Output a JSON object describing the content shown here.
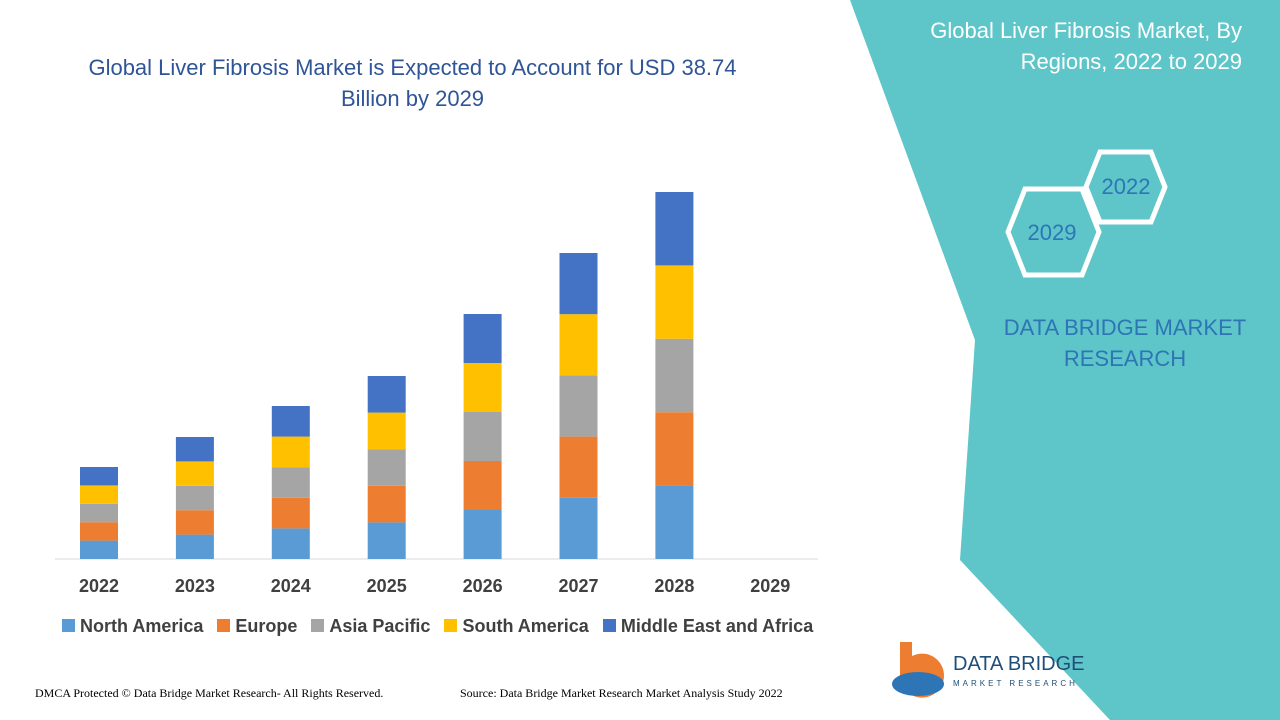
{
  "chart_data": {
    "type": "stacked-bar",
    "title": "Global Liver Fibrosis Market is Expected to Account for USD 38.74 Billion by 2029",
    "categories": [
      "2022",
      "2023",
      "2024",
      "2025",
      "2026",
      "2027",
      "2028",
      "2029"
    ],
    "series": [
      {
        "name": "North America",
        "color": "#5b9bd5",
        "values": [
          1.84,
          2.44,
          3.06,
          3.66,
          4.9,
          6.12,
          7.34,
          null
        ]
      },
      {
        "name": "Europe",
        "color": "#ed7d31",
        "values": [
          1.84,
          2.44,
          3.06,
          3.66,
          4.9,
          6.12,
          7.34,
          null
        ]
      },
      {
        "name": "Asia Pacific",
        "color": "#a5a5a5",
        "values": [
          1.84,
          2.44,
          3.06,
          3.66,
          4.9,
          6.12,
          7.34,
          null
        ]
      },
      {
        "name": "South America",
        "color": "#ffc000",
        "values": [
          1.84,
          2.44,
          3.06,
          3.66,
          4.9,
          6.12,
          7.34,
          null
        ]
      },
      {
        "name": "Middle East and Africa",
        "color": "#4472c4",
        "values": [
          1.84,
          2.44,
          3.06,
          3.66,
          4.9,
          6.12,
          7.34,
          null
        ]
      }
    ],
    "legend": "bottom"
  },
  "header": {
    "title": "Global Liver Fibrosis Market, By Regions, 2022 to 2029"
  },
  "badges": {
    "start": "2022",
    "end": "2029"
  },
  "brand": {
    "name": "DATA BRIDGE MARKET RESEARCH"
  },
  "logo": {
    "name": "DATA BRIDGE",
    "tagline": "MARKET RESEARCH"
  },
  "footer": {
    "copyright": "DMCA Protected © Data Bridge Market Research- All Rights Reserved.",
    "source": "Source: Data Bridge Market Research Market Analysis Study 2022"
  }
}
